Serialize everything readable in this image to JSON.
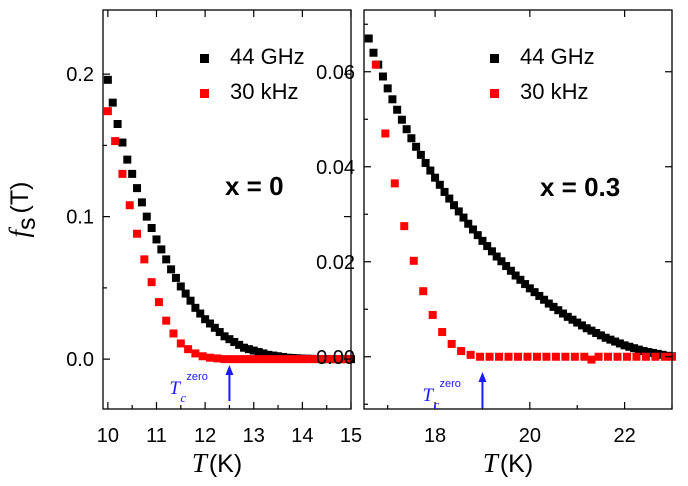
{
  "chart_data": [
    {
      "type": "scatter",
      "annotation": "x = 0",
      "ylabel_symbol": "f",
      "ylabel_sub": "s",
      "ylabel_unit": "(T)",
      "xlabel_symbol": "T",
      "xlabel_unit": "(K)",
      "xlim": [
        9.9,
        15
      ],
      "ylim": [
        -0.035,
        0.245
      ],
      "xticks": [
        10,
        11,
        12,
        13,
        14,
        15
      ],
      "yticks": [
        0.0,
        0.1,
        0.2
      ],
      "ytick_labels": [
        "0.0",
        "0.1",
        "0.2"
      ],
      "tc_marker": {
        "label": "T",
        "sub": "c",
        "sup": "zero",
        "x": 12.5
      },
      "series": [
        {
          "name": "44 GHz",
          "color": "#000000",
          "x": [
            10.0,
            10.1,
            10.2,
            10.3,
            10.4,
            10.5,
            10.6,
            10.7,
            10.8,
            10.9,
            11.0,
            11.1,
            11.2,
            11.3,
            11.4,
            11.5,
            11.6,
            11.7,
            11.8,
            11.9,
            12.0,
            12.1,
            12.2,
            12.3,
            12.4,
            12.5,
            12.6,
            12.7,
            12.8,
            12.9,
            13.0,
            13.1,
            13.2,
            13.3,
            13.4,
            13.5,
            13.6,
            13.7,
            13.8,
            13.9,
            14.0,
            14.1,
            14.2,
            14.3,
            14.4,
            14.5,
            14.6,
            14.7,
            14.8,
            14.9,
            15.0
          ],
          "y": [
            0.196,
            0.18,
            0.165,
            0.152,
            0.14,
            0.13,
            0.12,
            0.11,
            0.1,
            0.092,
            0.084,
            0.077,
            0.07,
            0.063,
            0.057,
            0.051,
            0.046,
            0.041,
            0.036,
            0.032,
            0.028,
            0.025,
            0.022,
            0.019,
            0.016,
            0.014,
            0.012,
            0.01,
            0.008,
            0.007,
            0.006,
            0.005,
            0.004,
            0.003,
            0.0025,
            0.002,
            0.0015,
            0.001,
            0.0008,
            0.0006,
            0.0004,
            0.0003,
            0.0002,
            0.0001,
            0.0,
            0.0,
            0.0,
            0.0,
            0.0,
            0.0,
            0.0
          ]
        },
        {
          "name": "30 kHz",
          "color": "#ff0000",
          "x": [
            10.0,
            10.15,
            10.3,
            10.45,
            10.6,
            10.75,
            10.9,
            11.05,
            11.2,
            11.35,
            11.5,
            11.65,
            11.8,
            11.95,
            12.1,
            12.25,
            12.4,
            12.55,
            12.7,
            12.85,
            13.0,
            13.15,
            13.3,
            13.45,
            13.6,
            13.75,
            13.9,
            14.05,
            14.2,
            14.35,
            14.5,
            14.65,
            14.8,
            14.95
          ],
          "y": [
            0.174,
            0.153,
            0.13,
            0.108,
            0.088,
            0.07,
            0.054,
            0.04,
            0.027,
            0.018,
            0.011,
            0.007,
            0.004,
            0.002,
            0.001,
            0.0005,
            0.0,
            0.0,
            0.0,
            0.0,
            0.0,
            0.0,
            0.0,
            0.0,
            0.0,
            0.0,
            0.0,
            0.0,
            0.0,
            0.0,
            0.0,
            0.0,
            0.0,
            0.0
          ]
        }
      ]
    },
    {
      "type": "scatter",
      "annotation": "x = 0.3",
      "xlabel_symbol": "T",
      "xlabel_unit": "(K)",
      "xlim": [
        16.5,
        23
      ],
      "ylim": [
        -0.011,
        0.073
      ],
      "xticks": [
        18,
        20,
        22
      ],
      "yticks": [
        0.0,
        0.02,
        0.04,
        0.06
      ],
      "ytick_labels": [
        "0.00",
        "0.02",
        "0.04",
        "0.06"
      ],
      "tc_marker": {
        "label": "T",
        "sub": "c",
        "sup": "zero",
        "x": 19.0
      },
      "series": [
        {
          "name": "44 GHz",
          "color": "#000000",
          "x": [
            16.6,
            16.7,
            16.8,
            16.9,
            17.0,
            17.1,
            17.2,
            17.3,
            17.4,
            17.5,
            17.6,
            17.7,
            17.8,
            17.9,
            18.0,
            18.1,
            18.2,
            18.3,
            18.4,
            18.5,
            18.6,
            18.7,
            18.8,
            18.9,
            19.0,
            19.1,
            19.2,
            19.3,
            19.4,
            19.5,
            19.6,
            19.7,
            19.8,
            19.9,
            20.0,
            20.1,
            20.2,
            20.3,
            20.4,
            20.5,
            20.6,
            20.7,
            20.8,
            20.9,
            21.0,
            21.1,
            21.2,
            21.3,
            21.4,
            21.5,
            21.6,
            21.7,
            21.8,
            21.9,
            22.0,
            22.1,
            22.2,
            22.3,
            22.4,
            22.5,
            22.6,
            22.7,
            22.8,
            22.9,
            23.0
          ],
          "y": [
            0.067,
            0.064,
            0.0615,
            0.059,
            0.0565,
            0.0542,
            0.052,
            0.0499,
            0.0479,
            0.046,
            0.0442,
            0.0425,
            0.0408,
            0.0392,
            0.0377,
            0.0362,
            0.0347,
            0.0333,
            0.0319,
            0.0306,
            0.0293,
            0.028,
            0.0268,
            0.0256,
            0.0244,
            0.0233,
            0.0222,
            0.0211,
            0.0201,
            0.0191,
            0.0181,
            0.0171,
            0.0162,
            0.0153,
            0.0144,
            0.0136,
            0.0128,
            0.012,
            0.0112,
            0.0105,
            0.0098,
            0.0091,
            0.0084,
            0.0078,
            0.0072,
            0.0066,
            0.006,
            0.0055,
            0.005,
            0.0045,
            0.004,
            0.0036,
            0.0032,
            0.0028,
            0.0024,
            0.0021,
            0.0018,
            0.0015,
            0.0012,
            0.001,
            0.0008,
            0.0006,
            0.0004,
            0.0002,
            0.0001
          ]
        },
        {
          "name": "30 kHz",
          "color": "#ff0000",
          "x": [
            16.75,
            16.95,
            17.15,
            17.35,
            17.55,
            17.75,
            17.95,
            18.15,
            18.35,
            18.55,
            18.75,
            18.95,
            19.15,
            19.35,
            19.55,
            19.75,
            19.95,
            20.15,
            20.35,
            20.55,
            20.75,
            20.95,
            21.15,
            21.3,
            21.45,
            21.65,
            21.85,
            22.05,
            22.25,
            22.45,
            22.65,
            22.85,
            23.0
          ],
          "y": [
            0.0615,
            0.047,
            0.0365,
            0.0275,
            0.0202,
            0.0138,
            0.0088,
            0.0052,
            0.0027,
            0.0012,
            0.0004,
            0.0,
            0.0,
            0.0,
            0.0,
            0.0,
            0.0,
            0.0,
            0.0,
            0.0,
            0.0,
            0.0,
            0.0,
            -0.0006,
            0.0,
            0.0,
            0.0,
            0.0,
            0.0,
            0.0,
            0.0,
            0.0,
            0.0
          ]
        }
      ]
    }
  ]
}
